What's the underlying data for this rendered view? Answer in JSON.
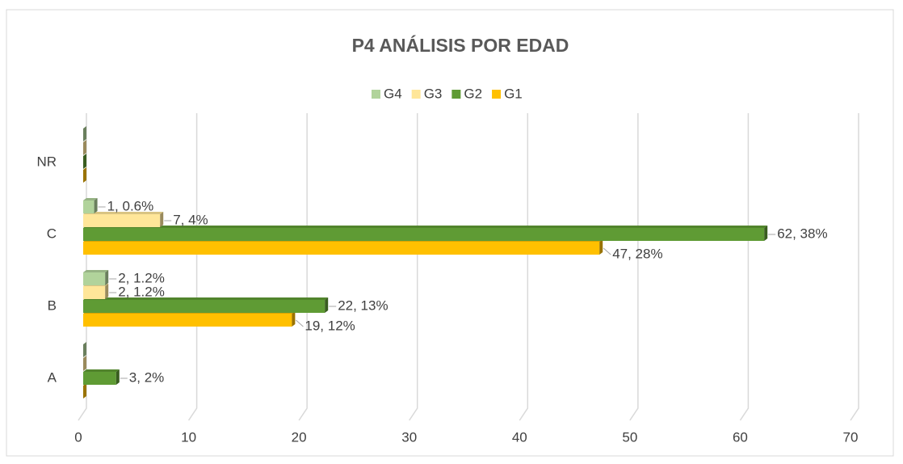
{
  "chart_data": {
    "type": "bar",
    "orientation": "horizontal",
    "title": "P4 ANÁLISIS POR EDAD",
    "categories": [
      "A",
      "B",
      "C",
      "NR"
    ],
    "series": [
      {
        "name": "G1",
        "color": "#ffc000",
        "values": [
          0,
          19,
          47,
          0
        ],
        "value_labels": [
          null,
          "19,  12%",
          "47,  28%",
          null
        ]
      },
      {
        "name": "G2",
        "color": "#5f9b34",
        "values": [
          3,
          22,
          62,
          0
        ],
        "value_labels": [
          "3,  2%",
          "22,  13%",
          "62,  38%",
          null
        ]
      },
      {
        "name": "G3",
        "color": "#ffe699",
        "values": [
          0,
          2,
          7,
          0
        ],
        "value_labels": [
          null,
          "2,  1.2%",
          "7,  4%",
          null
        ]
      },
      {
        "name": "G4",
        "color": "#b1d39b",
        "values": [
          0,
          2,
          1,
          0
        ],
        "value_labels": [
          null,
          "2,  1.2%",
          "1,  0.6%",
          null
        ]
      }
    ],
    "xlim": [
      0,
      70
    ],
    "xticks": [
      0,
      10,
      20,
      30,
      40,
      50,
      60,
      70
    ],
    "grid": true,
    "legend": "top"
  }
}
